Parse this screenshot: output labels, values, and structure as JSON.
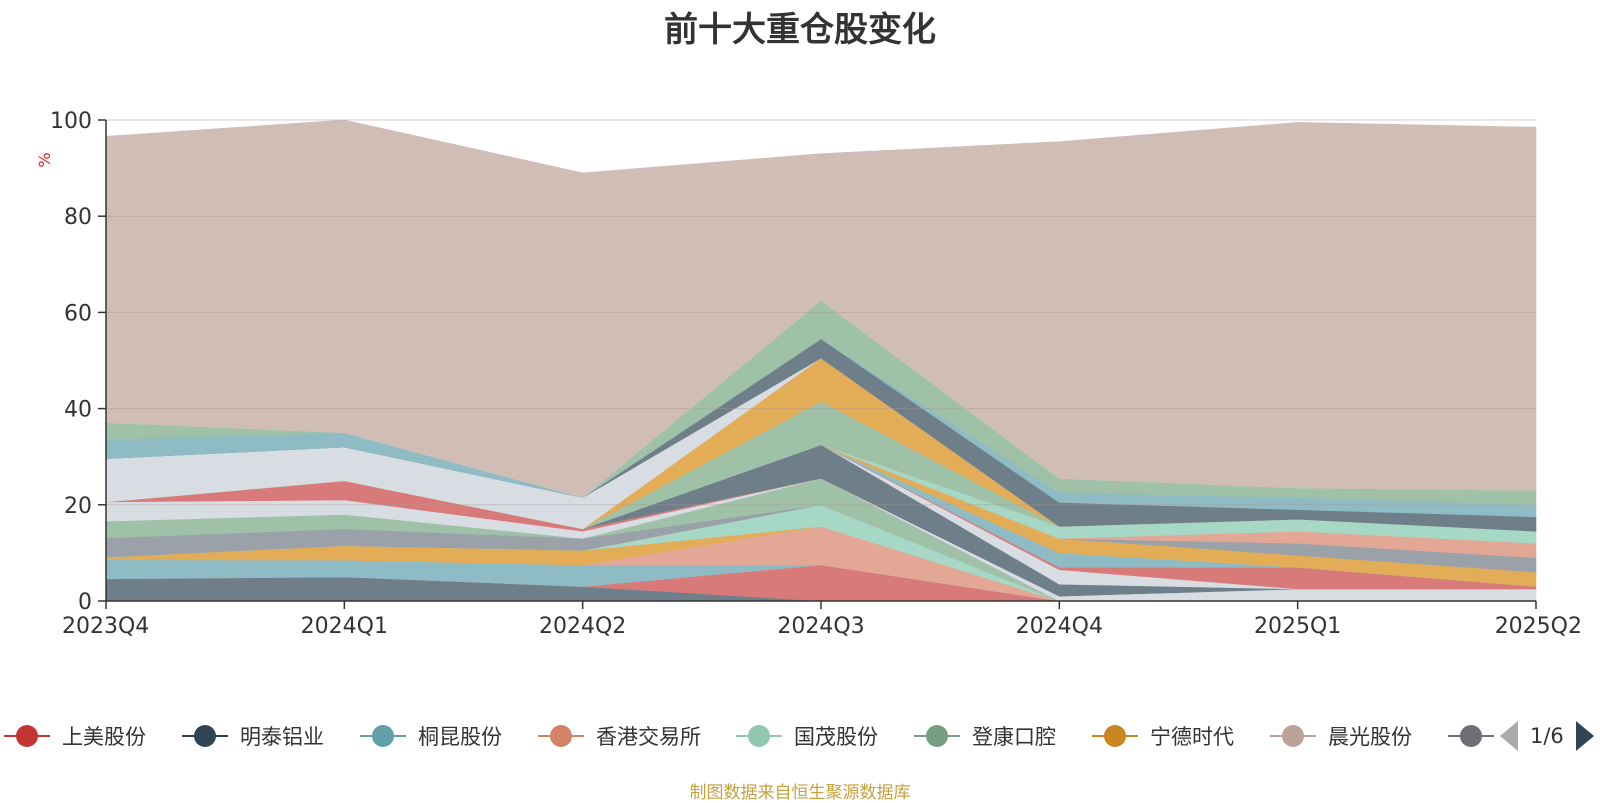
{
  "chart_data": {
    "type": "area",
    "stacked": true,
    "title": "前十大重仓股变化",
    "ylabel": "%",
    "ylim": [
      0,
      100
    ],
    "yticks": [
      0,
      20,
      40,
      60,
      80,
      100
    ],
    "categories": [
      "2023Q4",
      "2024Q1",
      "2024Q2",
      "2024Q3",
      "2024Q4",
      "2025Q1",
      "2025Q2"
    ],
    "grid": true,
    "legend_position": "bottom",
    "series": [
      {
        "name": "",
        "color": "#6e7f8a",
        "values": [
          4.6,
          5.0,
          3.0,
          0,
          0,
          0,
          0
        ]
      },
      {
        "name": "",
        "color": "#d97a7a",
        "values": [
          0,
          0,
          0,
          7.5,
          0,
          0,
          0
        ]
      },
      {
        "name": "",
        "color": "#8fbcc4",
        "values": [
          4.0,
          3.5,
          4.5,
          0,
          0,
          0,
          0
        ]
      },
      {
        "name": "",
        "color": "#e3a796",
        "values": [
          0,
          0,
          0,
          8.0,
          0,
          0,
          0
        ]
      },
      {
        "name": "",
        "color": "#e3ad58",
        "values": [
          0.5,
          3.0,
          3.0,
          0,
          0,
          0,
          0
        ]
      },
      {
        "name": "",
        "color": "#a7d7c5",
        "values": [
          0,
          0,
          0,
          4.5,
          0,
          0,
          0
        ]
      },
      {
        "name": "",
        "color": "#9aa1a8",
        "values": [
          4.0,
          3.5,
          2.5,
          0,
          0,
          0,
          0
        ]
      },
      {
        "name": "",
        "color": "#9fc1a8",
        "values": [
          3.5,
          3.0,
          0,
          5.5,
          0,
          0,
          0
        ]
      },
      {
        "name": "",
        "color": "#d8dde3",
        "values": [
          4.0,
          3.0,
          1.5,
          0,
          0,
          0,
          0
        ]
      },
      {
        "name": "",
        "color": "#d97a7a",
        "values": [
          0,
          4.0,
          0.5,
          0,
          0,
          0,
          0
        ]
      },
      {
        "name": "",
        "color": "#d8dde3",
        "values": [
          0,
          0,
          0,
          0,
          1.0,
          2.5,
          2.5
        ]
      },
      {
        "name": "",
        "color": "#6e7f8a",
        "values": [
          0,
          0,
          0,
          7.0,
          2.5,
          0,
          0
        ]
      },
      {
        "name": "",
        "color": "#d8dde3",
        "values": [
          0,
          0,
          0,
          0,
          3.0,
          0,
          0
        ]
      },
      {
        "name": "",
        "color": "#d97a7a",
        "values": [
          0,
          0,
          0,
          0,
          0.5,
          4.5,
          0.5
        ]
      },
      {
        "name": "",
        "color": "#8fbcc4",
        "values": [
          0,
          0,
          0,
          0,
          3.0,
          0,
          0
        ]
      },
      {
        "name": "",
        "color": "#e3ad58",
        "values": [
          0,
          0,
          0,
          0,
          3.0,
          2.5,
          3.0
        ]
      },
      {
        "name": "",
        "color": "#9aa1a8",
        "values": [
          0,
          0,
          0,
          0,
          0,
          2.5,
          3.0
        ]
      },
      {
        "name": "",
        "color": "#e3a796",
        "values": [
          0,
          0,
          0,
          0,
          0,
          2.5,
          3.0
        ]
      },
      {
        "name": "",
        "color": "#a7d7c5",
        "values": [
          0,
          0,
          0,
          0,
          2.5,
          2.5,
          2.5
        ]
      },
      {
        "name": "",
        "color": "#9fc1a8",
        "values": [
          0,
          0,
          0,
          9.0,
          0,
          0,
          0
        ]
      },
      {
        "name": "",
        "color": "#e3ad58",
        "values": [
          0,
          0,
          0,
          9.0,
          0,
          0,
          0
        ]
      },
      {
        "name": "",
        "color": "#d8dde3",
        "values": [
          9.0,
          7.0,
          6.5,
          0,
          0,
          0,
          0
        ]
      },
      {
        "name": "",
        "color": "#6e7f8a",
        "values": [
          0,
          0,
          0,
          4.0,
          5.0,
          2.0,
          3.0
        ]
      },
      {
        "name": "",
        "color": "#8fbcc4",
        "values": [
          4.0,
          3.0,
          0,
          0,
          2.0,
          2.5,
          2.5
        ]
      },
      {
        "name": "",
        "color": "#9fc1a8",
        "values": [
          3.5,
          0,
          0,
          8.0,
          3.0,
          2.0,
          3.0
        ]
      },
      {
        "name": "",
        "color": "#d8dde3",
        "values": [
          0,
          0,
          0,
          0,
          0,
          0,
          0
        ]
      },
      {
        "name": "",
        "color": "#cfbdb6",
        "values": [
          59.5,
          65.0,
          67.5,
          30.5,
          70.0,
          76.0,
          75.5
        ]
      }
    ]
  },
  "legend": {
    "items": [
      {
        "label": "上美股份",
        "color": "#c23531"
      },
      {
        "label": "明泰铝业",
        "color": "#2f4554"
      },
      {
        "label": "桐昆股份",
        "color": "#61a0a8"
      },
      {
        "label": "香港交易所",
        "color": "#d48265"
      },
      {
        "label": "国茂股份",
        "color": "#91c7ae"
      },
      {
        "label": "登康口腔",
        "color": "#749f83"
      },
      {
        "label": "宁德时代",
        "color": "#ca8622"
      },
      {
        "label": "晨光股份",
        "color": "#bda29a"
      },
      {
        "label": "",
        "color": "#6e7074"
      }
    ],
    "page": "1/6"
  },
  "footer": {
    "source": "制图数据来自恒生聚源数据库"
  }
}
